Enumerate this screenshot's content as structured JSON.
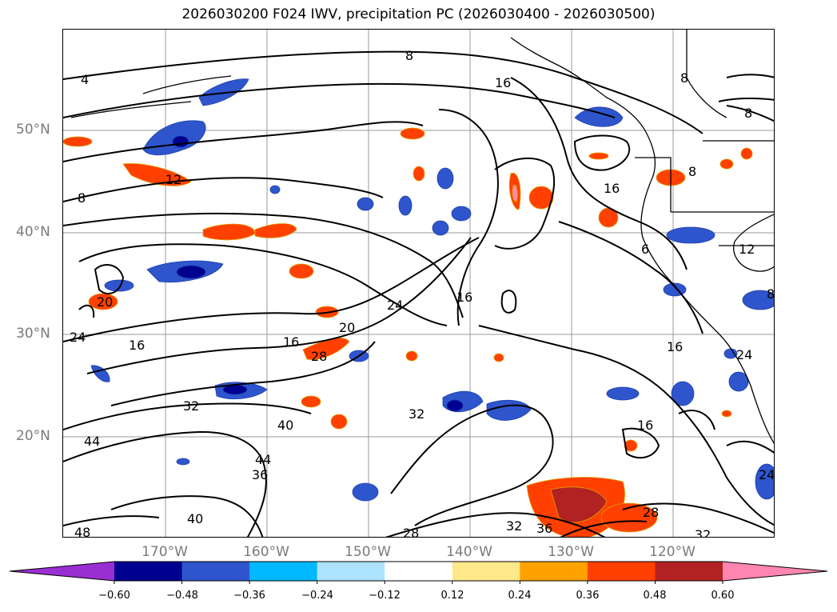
{
  "title": "2026030200 F024 IWV, precipitation PC (2026030400 - 2026030500)",
  "map": {
    "lat_labels": [
      "50°N",
      "40°N",
      "30°N",
      "20°N"
    ],
    "lon_labels": [
      "170°W",
      "160°W",
      "150°W",
      "140°W",
      "130°W",
      "120°W"
    ],
    "grid": true
  },
  "contour_labels": [
    "4",
    "8",
    "16",
    "8",
    "8",
    "12",
    "8",
    "16",
    "8",
    "20",
    "24",
    "16",
    "20",
    "16",
    "24",
    "28",
    "16",
    "32",
    "24",
    "40",
    "44",
    "36",
    "44",
    "40",
    "48",
    "32",
    "28",
    "32",
    "36",
    "28",
    "32",
    "16",
    "24",
    "16",
    "6",
    "12",
    "8"
  ],
  "colorbar": {
    "extend": "both",
    "ticks": [
      "−0.60",
      "−0.48",
      "−0.36",
      "−0.24",
      "−0.12",
      "0.12",
      "0.24",
      "0.36",
      "0.48",
      "0.60"
    ],
    "colors": [
      "#9a2fd1",
      "#000090",
      "#2e55cc",
      "#00b8ff",
      "#ade3fc",
      "#ffffff",
      "#ffe88a",
      "#ffa200",
      "#ff4000",
      "#b22222",
      "#ff86b0"
    ]
  }
}
